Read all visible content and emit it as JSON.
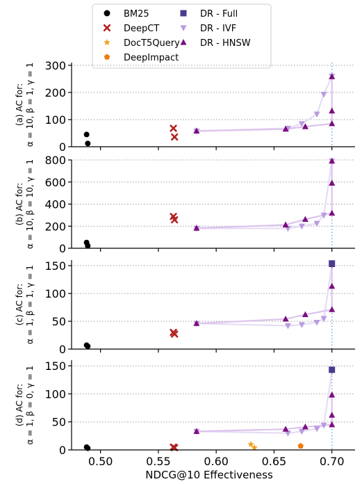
{
  "chart_data": {
    "type": "scatter",
    "xlabel": "NDCG@10 Effectiveness",
    "xlim": [
      0.475,
      0.72
    ],
    "xticks": [
      0.5,
      0.55,
      0.6,
      0.65,
      0.7
    ],
    "xtick_labels": [
      "0.50",
      "0.55",
      "0.60",
      "0.65",
      "0.70"
    ],
    "vline_x": 0.7,
    "grid": "horizontal dotted",
    "legend": {
      "placement": "top-center",
      "entries": [
        {
          "key": "bm25",
          "label": "BM25",
          "marker": "circle",
          "color": "#000000"
        },
        {
          "key": "deepct",
          "label": "DeepCT",
          "marker": "x",
          "color": "#b22222"
        },
        {
          "key": "doct5",
          "label": "DocT5Query",
          "marker": "star",
          "color": "#f0a020"
        },
        {
          "key": "deepimpact",
          "label": "DeepImpact",
          "marker": "pentagon",
          "color": "#ee7b10"
        },
        {
          "key": "full",
          "label": "DR - Full",
          "marker": "square",
          "color": "#4b3b8f"
        },
        {
          "key": "ivf",
          "label": "DR - IVF",
          "marker": "triangle-down",
          "color": "#b89be0"
        },
        {
          "key": "hnsw",
          "label": "DR - HNSW",
          "marker": "triangle-up",
          "color": "#7b0f7f"
        }
      ]
    },
    "panels": [
      {
        "ylabel_line1": "(a) AC for:",
        "ylabel_line2": "α = 10, β = 1, γ = 1",
        "ylim": [
          0,
          310
        ],
        "yticks": [
          0,
          100,
          200,
          300
        ],
        "ytick_labels": [
          "0",
          "100",
          "200",
          "300"
        ],
        "series": {
          "bm25": [
            [
              0.488,
              45
            ],
            [
              0.489,
              12
            ]
          ],
          "deepct": [
            [
              0.563,
              68
            ],
            [
              0.564,
              36
            ]
          ],
          "doct5": [],
          "deepimpact": [],
          "full": [],
          "ivf": [
            [
              0.583,
              58
            ],
            [
              0.662,
              68
            ],
            [
              0.674,
              85
            ],
            [
              0.687,
              120
            ],
            [
              0.693,
              193
            ],
            [
              0.7,
              260
            ]
          ],
          "hnsw": [
            [
              0.583,
              58
            ],
            [
              0.66,
              65
            ],
            [
              0.677,
              74
            ],
            [
              0.7,
              85
            ],
            [
              0.7,
              132
            ],
            [
              0.7,
              258
            ]
          ]
        }
      },
      {
        "ylabel_line1": "(b) AC for:",
        "ylabel_line2": "α = 10, β = 10, γ = 1",
        "ylim": [
          0,
          800
        ],
        "yticks": [
          0,
          200,
          400,
          600,
          800
        ],
        "ytick_labels": [
          "0",
          "200",
          "400",
          "600",
          "800"
        ],
        "series": {
          "bm25": [
            [
              0.488,
              52
            ],
            [
              0.489,
              22
            ]
          ],
          "deepct": [
            [
              0.563,
              288
            ],
            [
              0.564,
              258
            ]
          ],
          "doct5": [],
          "deepimpact": [],
          "full": [],
          "ivf": [
            [
              0.583,
              180
            ],
            [
              0.662,
              180
            ],
            [
              0.674,
              200
            ],
            [
              0.687,
              225
            ],
            [
              0.693,
              300
            ],
            [
              0.7,
              790
            ]
          ],
          "hnsw": [
            [
              0.583,
              182
            ],
            [
              0.66,
              212
            ],
            [
              0.677,
              262
            ],
            [
              0.7,
              318
            ],
            [
              0.7,
              590
            ],
            [
              0.7,
              790
            ]
          ]
        }
      },
      {
        "ylabel_line1": "(c) AC for:",
        "ylabel_line2": "α = 1, β = 1, γ = 1",
        "ylim": [
          0,
          160
        ],
        "yticks": [
          0,
          50,
          100,
          150
        ],
        "ytick_labels": [
          "0",
          "50",
          "100",
          "150"
        ],
        "series": {
          "bm25": [
            [
              0.488,
              7
            ],
            [
              0.489,
              5
            ]
          ],
          "deepct": [
            [
              0.563,
              30
            ],
            [
              0.564,
              27
            ]
          ],
          "doct5": [],
          "deepimpact": [],
          "full": [
            [
              0.7,
              154
            ]
          ],
          "ivf": [
            [
              0.583,
              46
            ],
            [
              0.662,
              42
            ],
            [
              0.674,
              44
            ],
            [
              0.687,
              48
            ],
            [
              0.693,
              55
            ],
            [
              0.7,
              150
            ]
          ],
          "hnsw": [
            [
              0.583,
              46
            ],
            [
              0.66,
              54
            ],
            [
              0.677,
              62
            ],
            [
              0.7,
              71
            ],
            [
              0.7,
              113
            ],
            [
              0.7,
              152
            ]
          ]
        }
      },
      {
        "ylabel_line1": "(d) AC for:",
        "ylabel_line2": "α = 1, β = 0, γ = 1",
        "ylim": [
          0,
          160
        ],
        "yticks": [
          0,
          50,
          100,
          150
        ],
        "ytick_labels": [
          "0",
          "50",
          "100",
          "150"
        ],
        "series": {
          "bm25": [
            [
              0.488,
              5
            ],
            [
              0.489,
              3
            ]
          ],
          "deepct": [
            [
              0.563,
              5
            ],
            [
              0.564,
              4
            ]
          ],
          "doct5": [
            [
              0.63,
              10
            ],
            [
              0.633,
              4
            ]
          ],
          "deepimpact": [
            [
              0.673,
              7
            ]
          ],
          "full": [
            [
              0.7,
              143
            ]
          ],
          "ivf": [
            [
              0.583,
              33
            ],
            [
              0.662,
              30
            ],
            [
              0.674,
              33
            ],
            [
              0.687,
              38
            ],
            [
              0.693,
              44
            ],
            [
              0.7,
              140
            ]
          ],
          "hnsw": [
            [
              0.583,
              33
            ],
            [
              0.66,
              37
            ],
            [
              0.677,
              41
            ],
            [
              0.7,
              45
            ],
            [
              0.7,
              62
            ],
            [
              0.7,
              98
            ]
          ]
        }
      }
    ]
  }
}
